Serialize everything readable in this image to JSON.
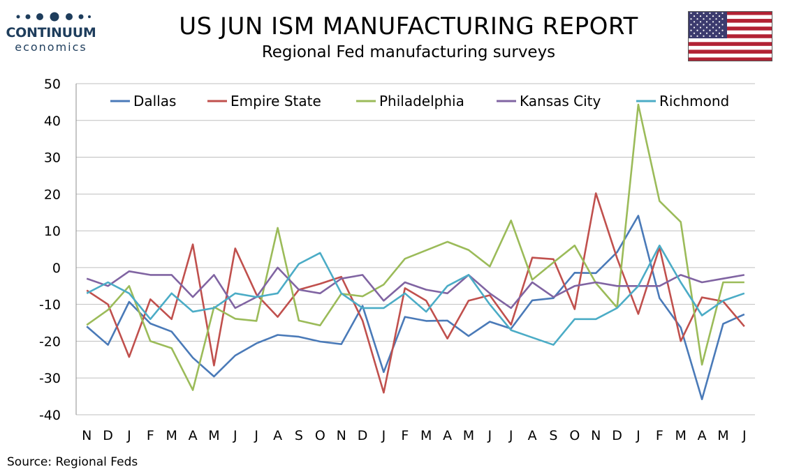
{
  "brand": {
    "name": "CONTINUUM",
    "sub": "economics"
  },
  "header": {
    "title": "US JUN ISM MANUFACTURING REPORT",
    "subtitle": "Regional Fed manufacturing surveys"
  },
  "footer": {
    "source": "Source: Regional Feds"
  },
  "colors": {
    "brand": "#1e3d5c",
    "grid": "#bfbfbf",
    "flag_red": "#b22234",
    "flag_blue": "#3c3b6e"
  },
  "chart_data": {
    "type": "line",
    "title": "",
    "xlabel": "",
    "ylabel": "",
    "categories": [
      "N",
      "D",
      "J",
      "F",
      "M",
      "A",
      "M",
      "J",
      "J",
      "A",
      "S",
      "O",
      "N",
      "D",
      "J",
      "F",
      "M",
      "A",
      "M",
      "J",
      "J",
      "A",
      "S",
      "O",
      "N",
      "D",
      "J",
      "F",
      "M",
      "A",
      "M",
      "J"
    ],
    "ylim": [
      -40,
      50
    ],
    "yticks": [
      50,
      40,
      30,
      20,
      10,
      0,
      -10,
      -20,
      -30,
      -40
    ],
    "grid": true,
    "legend": "top",
    "series": [
      {
        "name": "Dallas",
        "color": "#4a7ab8",
        "values": [
          -16,
          -21,
          -9.3,
          -15.2,
          -17.4,
          -24.5,
          -29.6,
          -23.9,
          -20.6,
          -18.3,
          -18.8,
          -20.1,
          -20.8,
          -10.4,
          -28.4,
          -13.4,
          -14.5,
          -14.4,
          -18.6,
          -14.7,
          -16.6,
          -8.9,
          -8.3,
          -1.4,
          -1.5,
          4.2,
          14.1,
          -8.3,
          -16.3,
          -35.8,
          -15.3,
          -12.7
        ]
      },
      {
        "name": "Empire State",
        "color": "#c0504d",
        "values": [
          -6.2,
          -10,
          -24.3,
          -8.6,
          -14,
          6.3,
          -26.6,
          5.2,
          -7.3,
          -13.4,
          -6,
          -4.4,
          -2.5,
          -14.4,
          -34,
          -5.6,
          -9,
          -19.3,
          -9,
          -7.5,
          -15.5,
          2.7,
          2.3,
          -11.3,
          20.2,
          2.5,
          -12.6,
          5.5,
          -20,
          -8.1,
          -9.2,
          -16
        ]
      },
      {
        "name": "Philadelphia",
        "color": "#9bbb59",
        "values": [
          -15.6,
          -11.5,
          -5,
          -20,
          -21.9,
          -33.3,
          -10.7,
          -13.9,
          -14.5,
          10.8,
          -14.4,
          -15.7,
          -7.1,
          -7.8,
          -4.6,
          2.4,
          4.7,
          7,
          4.8,
          0.3,
          12.8,
          -3.3,
          1.4,
          6,
          -4.2,
          -10.9,
          44.3,
          18.1,
          12.4,
          -26.4,
          -4,
          -4
        ]
      },
      {
        "name": "Kansas City",
        "color": "#8064a2",
        "values": [
          -3,
          -5,
          -1,
          -2,
          -2,
          -8,
          -2,
          -11,
          -8,
          0,
          -6,
          -7,
          -3,
          -2,
          -9,
          -4,
          -6,
          -7,
          -2,
          -7,
          -11,
          -4,
          -8,
          -5,
          -4,
          -5,
          -5,
          -5,
          -2,
          -4,
          -3,
          -2
        ]
      },
      {
        "name": "Richmond",
        "color": "#4bacc6",
        "values": [
          -7,
          -4,
          -7,
          -14,
          -7,
          -12,
          -11,
          -7,
          -8,
          -7,
          1,
          4,
          -7,
          -11,
          -11,
          -7,
          -12,
          -5,
          -2,
          -10,
          -17,
          -19,
          -21,
          -14,
          -14,
          -11,
          -5,
          6,
          -4,
          -13,
          -9,
          -7
        ]
      }
    ]
  }
}
